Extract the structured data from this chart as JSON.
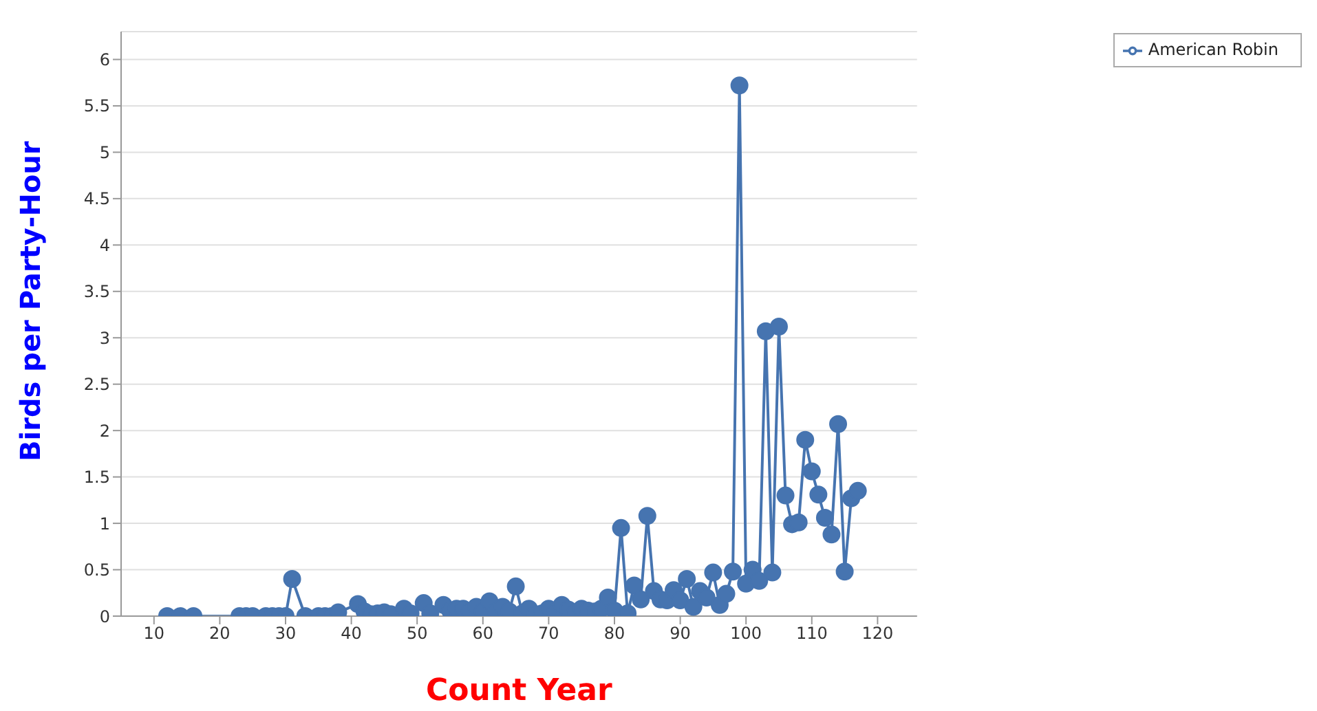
{
  "chart_data": {
    "type": "line",
    "xlabel": "Count Year",
    "ylabel": "Birds per Party-Hour",
    "x": [
      12,
      14,
      16,
      23,
      24,
      25,
      27,
      28,
      29,
      30,
      31,
      33,
      35,
      36,
      37,
      38,
      41,
      42,
      43,
      44,
      45,
      46,
      48,
      49,
      51,
      52,
      54,
      55,
      56,
      57,
      58,
      59,
      60,
      61,
      62,
      63,
      64,
      65,
      66,
      67,
      68,
      69,
      70,
      71,
      72,
      73,
      74,
      75,
      76,
      77,
      78,
      79,
      80,
      81,
      82,
      83,
      84,
      85,
      86,
      87,
      88,
      89,
      90,
      91,
      92,
      93,
      94,
      95,
      96,
      97,
      98,
      99,
      100,
      101,
      102,
      103,
      104,
      105,
      106,
      107,
      108,
      109,
      110,
      111,
      112,
      113,
      114,
      115,
      116,
      117
    ],
    "series": [
      {
        "name": "American Robin",
        "color": "#4674b0",
        "values": [
          0,
          0,
          0,
          0,
          0,
          0,
          0,
          0,
          0,
          0,
          0.4,
          0,
          0,
          0,
          0,
          0.04,
          0.13,
          0.05,
          0.02,
          0.03,
          0.04,
          0.02,
          0.08,
          0.03,
          0.14,
          0.03,
          0.12,
          0.06,
          0.08,
          0.08,
          0.05,
          0.1,
          0.05,
          0.16,
          0.05,
          0.1,
          0.05,
          0.32,
          0.03,
          0.08,
          0.02,
          0.03,
          0.08,
          0.04,
          0.12,
          0.07,
          0.03,
          0.08,
          0.06,
          0.05,
          0.08,
          0.2,
          0.06,
          0.95,
          0.03,
          0.33,
          0.18,
          1.08,
          0.27,
          0.18,
          0.17,
          0.28,
          0.17,
          0.4,
          0.1,
          0.27,
          0.2,
          0.47,
          0.12,
          0.24,
          0.48,
          5.72,
          0.35,
          0.5,
          0.38,
          3.07,
          0.47,
          3.12,
          1.3,
          0.99,
          1.01,
          1.9,
          1.56,
          1.31,
          1.06,
          0.88,
          2.07,
          0.48,
          1.27,
          1.35
        ]
      }
    ],
    "xlim": [
      5,
      126
    ],
    "xticks": [
      10,
      20,
      30,
      40,
      50,
      60,
      70,
      80,
      90,
      100,
      110,
      120
    ],
    "ylim": [
      0,
      6.3
    ],
    "yticks": [
      0,
      0.5,
      1,
      1.5,
      2,
      2.5,
      3,
      3.5,
      4,
      4.5,
      5,
      5.5,
      6
    ],
    "grid": "y",
    "legend": "top right",
    "marker": "circle",
    "line_style": "solid"
  }
}
